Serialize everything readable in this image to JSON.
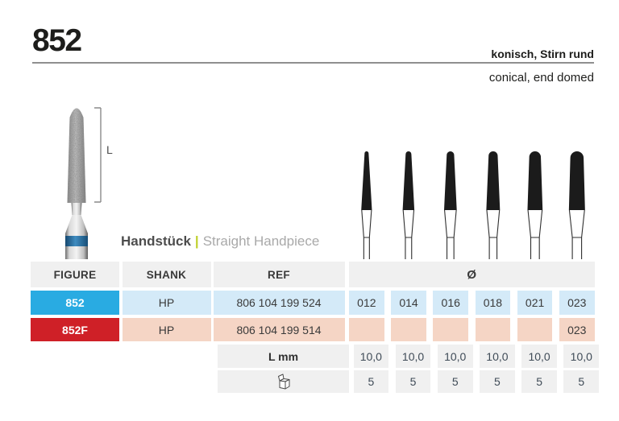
{
  "page": {
    "title_number": "852",
    "subtitle_de": "konisch, Stirn rund",
    "subtitle_en": "conical, end domed"
  },
  "handpiece": {
    "de": "Handstück",
    "separator": "|",
    "en": "Straight Handpiece"
  },
  "bur": {
    "length_label": "L"
  },
  "table": {
    "headers": {
      "figure": "FIGURE",
      "shank": "SHANK",
      "ref": "REF",
      "diameter": "Ø"
    },
    "rows": [
      {
        "figure": "852",
        "shank": "HP",
        "ref": "806 104 199 524",
        "diameters": [
          "012",
          "014",
          "016",
          "018",
          "021",
          "023"
        ],
        "figure_bg": "#29abe2",
        "cell_bg": "#d4eaf8"
      },
      {
        "figure": "852F",
        "shank": "HP",
        "ref": "806 104 199 514",
        "diameters": [
          "",
          "",
          "",
          "",
          "",
          "023"
        ],
        "figure_bg": "#cf2027",
        "cell_bg": "#f5d5c5"
      }
    ],
    "length_row": {
      "label": "L mm",
      "values": [
        "10,0",
        "10,0",
        "10,0",
        "10,0",
        "10,0",
        "10,0"
      ]
    },
    "pack_row": {
      "icon": "package-icon",
      "values": [
        "5",
        "5",
        "5",
        "5",
        "5",
        "5"
      ]
    }
  },
  "colors": {
    "accent_blue": "#29abe2",
    "accent_red": "#cf2027",
    "light_blue": "#d4eaf8",
    "light_salmon": "#f5d5c5",
    "header_gray": "#f0f0f0",
    "separator_green": "#bfd02c"
  }
}
